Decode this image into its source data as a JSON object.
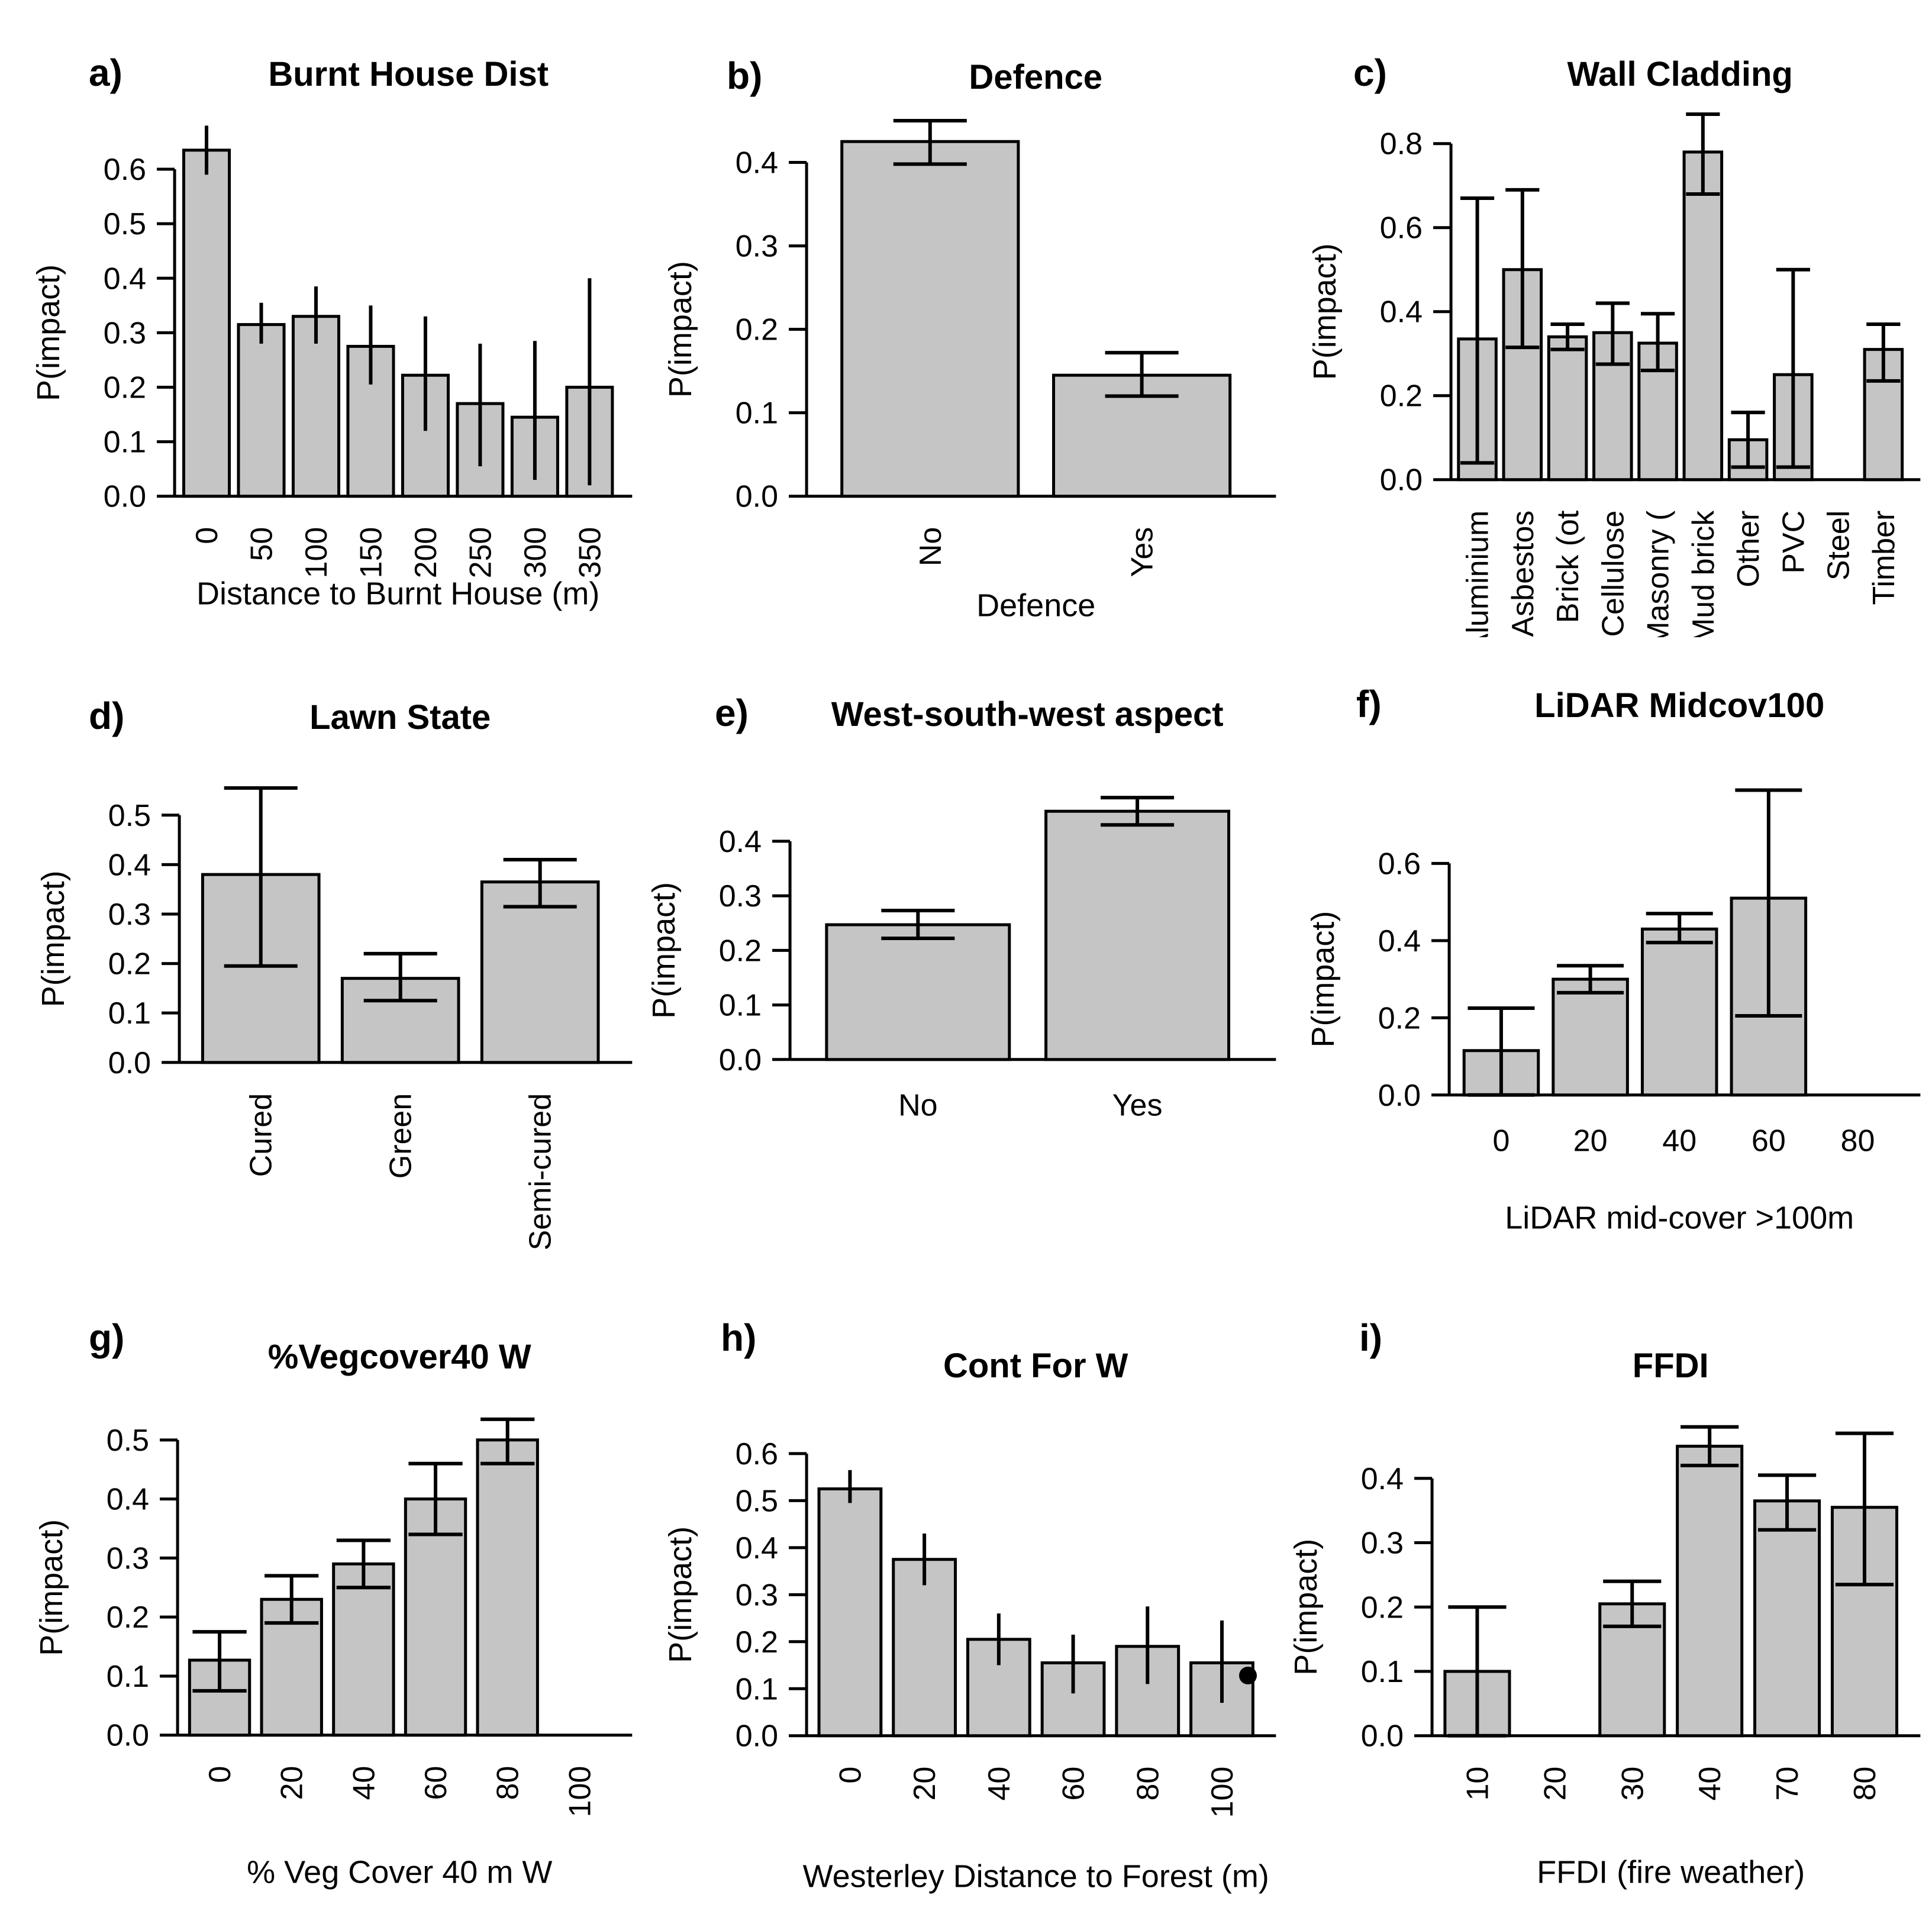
{
  "figure": {
    "background": "#ffffff",
    "bar_fill": "#c5c5c5",
    "line_color": "#000000"
  },
  "chart_data": [
    {
      "type": "bar",
      "panel_label": "a)",
      "title": "Burnt House Dist",
      "ylabel": "P(impact)",
      "xlabel": "Distance to Burnt House (m)",
      "categories": [
        "0",
        "50",
        "100",
        "150",
        "200",
        "250",
        "300",
        "350"
      ],
      "values": [
        0.635,
        0.315,
        0.33,
        0.275,
        0.222,
        0.17,
        0.145,
        0.2
      ],
      "err_low": [
        0.59,
        0.28,
        0.28,
        0.205,
        0.12,
        0.055,
        0.03,
        0.02
      ],
      "err_high": [
        0.68,
        0.355,
        0.385,
        0.35,
        0.33,
        0.28,
        0.285,
        0.4
      ],
      "error_caps": false,
      "x_tick_rotated": true,
      "yticks": [
        0.0,
        0.1,
        0.2,
        0.3,
        0.4,
        0.5,
        0.6
      ],
      "ylim": [
        0,
        0.7
      ],
      "grid": false
    },
    {
      "type": "bar",
      "panel_label": "b)",
      "title": "Defence",
      "ylabel": "P(impact)",
      "xlabel": "Defence",
      "categories": [
        "No",
        "Yes"
      ],
      "values": [
        0.425,
        0.145
      ],
      "err_low": [
        0.398,
        0.12
      ],
      "err_high": [
        0.45,
        0.172
      ],
      "error_caps": true,
      "x_tick_rotated": true,
      "yticks": [
        0.0,
        0.1,
        0.2,
        0.3,
        0.4
      ],
      "ylim": [
        0,
        0.455
      ],
      "grid": false
    },
    {
      "type": "bar",
      "panel_label": "c)",
      "title": "Wall Cladding",
      "ylabel": "P(impact)",
      "xlabel": "",
      "categories": [
        "Aluminium",
        "Asbestos",
        "Brick (ot",
        "Cellulose",
        "Masonry (",
        "Mud brick",
        "Other",
        "PVC",
        "Steel",
        "Timber"
      ],
      "values": [
        0.335,
        0.5,
        0.34,
        0.35,
        0.325,
        0.78,
        0.095,
        0.25,
        0,
        0.31
      ],
      "err_low": [
        0.04,
        0.315,
        0.31,
        0.275,
        0.26,
        0.68,
        0.03,
        0.03,
        null,
        0.235
      ],
      "err_high": [
        0.67,
        0.69,
        0.37,
        0.42,
        0.395,
        0.87,
        0.16,
        0.5,
        null,
        0.37
      ],
      "error_caps": true,
      "x_tick_rotated": true,
      "yticks": [
        0.0,
        0.2,
        0.4,
        0.6,
        0.8
      ],
      "ylim": [
        0,
        0.88
      ],
      "grid": false
    },
    {
      "type": "bar",
      "panel_label": "d)",
      "title": "Lawn State",
      "ylabel": "P(impact)",
      "xlabel": "",
      "categories": [
        "Cured",
        "Green",
        "Semi-cured"
      ],
      "values": [
        0.38,
        0.17,
        0.365
      ],
      "err_low": [
        0.195,
        0.125,
        0.315
      ],
      "err_high": [
        0.555,
        0.22,
        0.41
      ],
      "error_caps": true,
      "x_tick_rotated": true,
      "yticks": [
        0.0,
        0.1,
        0.2,
        0.3,
        0.4,
        0.5
      ],
      "ylim": [
        0,
        0.58
      ],
      "grid": false
    },
    {
      "type": "bar",
      "panel_label": "e)",
      "title": "West-south-west aspect",
      "ylabel": "P(impact)",
      "xlabel": "",
      "categories": [
        "No",
        "Yes"
      ],
      "values": [
        0.247,
        0.455
      ],
      "err_low": [
        0.222,
        0.43
      ],
      "err_high": [
        0.273,
        0.48
      ],
      "error_caps": true,
      "x_tick_rotated": false,
      "yticks": [
        0.0,
        0.1,
        0.2,
        0.3,
        0.4
      ],
      "ylim": [
        0,
        0.49
      ],
      "grid": false
    },
    {
      "type": "bar",
      "panel_label": "f)",
      "title": "LiDAR Midcov100",
      "ylabel": "P(impact)",
      "xlabel": "LiDAR mid-cover >100m",
      "categories": [
        "0",
        "20",
        "40",
        "60",
        "80"
      ],
      "values": [
        0.115,
        0.3,
        0.43,
        0.51,
        0
      ],
      "err_low": [
        0.0,
        0.265,
        0.395,
        0.205,
        null
      ],
      "err_high": [
        0.225,
        0.335,
        0.47,
        0.79,
        null
      ],
      "error_caps": true,
      "x_tick_rotated": false,
      "yticks": [
        0.0,
        0.2,
        0.4,
        0.6
      ],
      "ylim": [
        0,
        0.8
      ],
      "grid": false
    },
    {
      "type": "bar",
      "panel_label": "g)",
      "title": "%Vegcover40 W",
      "ylabel": "P(impact)",
      "xlabel": "% Veg Cover 40 m W",
      "categories": [
        "0",
        "20",
        "40",
        "60",
        "80",
        "100"
      ],
      "values": [
        0.127,
        0.23,
        0.29,
        0.4,
        0.5,
        0
      ],
      "err_low": [
        0.075,
        0.19,
        0.25,
        0.34,
        0.46,
        null
      ],
      "err_high": [
        0.175,
        0.27,
        0.33,
        0.46,
        0.535,
        null
      ],
      "error_caps": true,
      "x_tick_rotated": true,
      "yticks": [
        0.0,
        0.1,
        0.2,
        0.3,
        0.4,
        0.5
      ],
      "ylim": [
        0,
        0.55
      ],
      "grid": false
    },
    {
      "type": "bar",
      "panel_label": "h)",
      "title": "Cont For W",
      "ylabel": "P(impact)",
      "xlabel": "Westerley Distance to Forest (m)",
      "categories": [
        "0",
        "20",
        "40",
        "60",
        "80",
        "100"
      ],
      "values": [
        0.525,
        0.375,
        0.205,
        0.155,
        0.19,
        0.155
      ],
      "err_low": [
        0.495,
        0.32,
        0.15,
        0.09,
        0.11,
        0.07
      ],
      "err_high": [
        0.565,
        0.43,
        0.26,
        0.215,
        0.275,
        0.245
      ],
      "error_caps": false,
      "x_tick_rotated": true,
      "yticks": [
        0.0,
        0.1,
        0.2,
        0.3,
        0.4,
        0.5,
        0.6
      ],
      "ylim": [
        0,
        0.6
      ],
      "point": {
        "category": "100",
        "value": 0.128
      },
      "grid": false
    },
    {
      "type": "bar",
      "panel_label": "i)",
      "title": "FFDI",
      "ylabel": "P(impact)",
      "xlabel": "FFDI (fire weather)",
      "categories": [
        "10",
        "20",
        "30",
        "40",
        "70",
        "80"
      ],
      "values": [
        0.1,
        0,
        0.205,
        0.45,
        0.365,
        0.355
      ],
      "err_low": [
        0.0,
        null,
        0.17,
        0.42,
        0.32,
        0.235
      ],
      "err_high": [
        0.2,
        null,
        0.24,
        0.48,
        0.405,
        0.47
      ],
      "error_caps": true,
      "x_tick_rotated": true,
      "yticks": [
        0.0,
        0.1,
        0.2,
        0.3,
        0.4
      ],
      "ylim": [
        0,
        0.49
      ],
      "grid": false
    }
  ]
}
